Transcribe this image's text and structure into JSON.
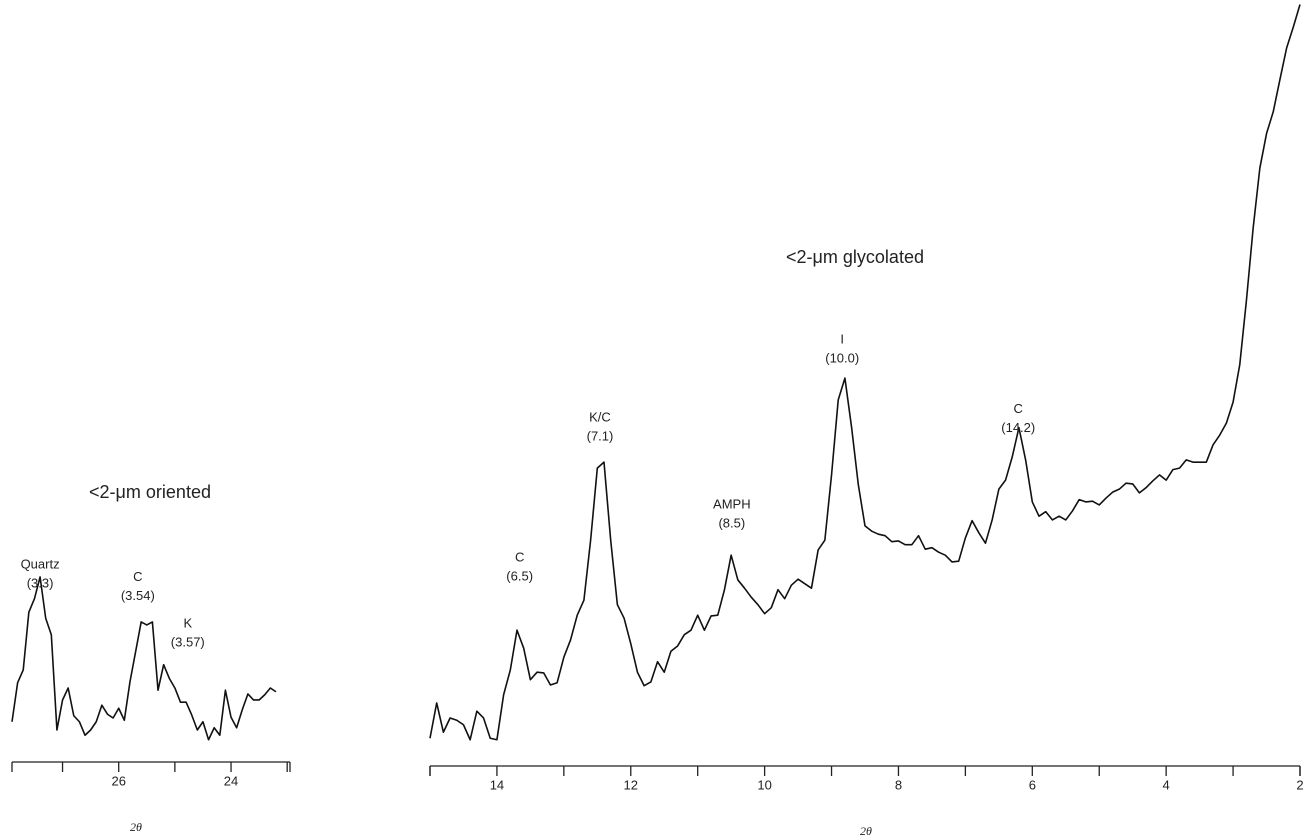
{
  "chart_data": [
    {
      "type": "line",
      "title": "<2-μm oriented",
      "xlabel": "2θ",
      "color": "#111111",
      "xlim": [
        27.9,
        22.95
      ],
      "ylim": [
        0,
        101.3
      ],
      "xticks": [
        26,
        24
      ],
      "xminor_ticks": [
        27,
        25,
        23
      ],
      "x": [
        27.9,
        27.8,
        27.7,
        27.6,
        27.5,
        27.4,
        27.3,
        27.2,
        27.1,
        27.0,
        26.9,
        26.8,
        26.7,
        26.6,
        26.5,
        26.4,
        26.3,
        26.2,
        26.1,
        26.0,
        25.9,
        25.8,
        25.7,
        25.6,
        25.5,
        25.4,
        25.3,
        25.2,
        25.1,
        25.0,
        24.9,
        24.8,
        24.7,
        24.6,
        24.5,
        24.4,
        24.3,
        24.2,
        24.1,
        24.0,
        23.9,
        23.8,
        23.7,
        23.6,
        23.5,
        23.4,
        23.3,
        23.2
      ],
      "values": [
        5.1,
        10.3,
        12,
        19.7,
        21.5,
        24.4,
        18.9,
        16.7,
        4,
        8,
        9.6,
        5.9,
        5.1,
        3.3,
        4,
        5.1,
        7.3,
        6.1,
        5.6,
        6.9,
        5.3,
        10.4,
        14.4,
        18.4,
        18,
        18.4,
        9.3,
        12.7,
        10.9,
        9.6,
        7.7,
        7.7,
        6,
        4,
        5.1,
        2.7,
        4.3,
        3.3,
        9.3,
        5.7,
        4.3,
        6.7,
        8.8,
        8,
        8,
        8.7,
        9.6,
        9.1
      ],
      "annotations": [
        {
          "label": "Quartz",
          "sublabel": "(3.3)",
          "x": 27.4,
          "y": 26
        },
        {
          "label": "C",
          "sublabel": "(3.54)",
          "x": 25.66,
          "y": 24.3
        },
        {
          "label": "K",
          "sublabel": "(3.57)",
          "x": 24.77,
          "y": 18.1
        }
      ]
    },
    {
      "type": "line",
      "title": "<2-μm glycolated",
      "xlabel": "2θ",
      "color": "#111111",
      "xlim": [
        15,
        2
      ],
      "ylim": [
        0,
        101.3
      ],
      "xticks": [
        14,
        12,
        10,
        8,
        6,
        4,
        2
      ],
      "xminor_ticks": [
        15,
        13,
        11,
        9,
        7,
        5,
        3
      ],
      "x": [
        15.0,
        14.9,
        14.8,
        14.7,
        14.6,
        14.5,
        14.4,
        14.3,
        14.2,
        14.1,
        14.0,
        13.9,
        13.8,
        13.7,
        13.6,
        13.5,
        13.4,
        13.3,
        13.2,
        13.1,
        13.0,
        12.9,
        12.8,
        12.7,
        12.6,
        12.5,
        12.4,
        12.3,
        12.2,
        12.1,
        12.0,
        11.9,
        11.8,
        11.7,
        11.6,
        11.5,
        11.4,
        11.3,
        11.2,
        11.1,
        11.0,
        10.9,
        10.8,
        10.7,
        10.6,
        10.5,
        10.4,
        10.3,
        10.2,
        10.1,
        10.0,
        9.9,
        9.8,
        9.7,
        9.6,
        9.5,
        9.4,
        9.3,
        9.2,
        9.1,
        9.0,
        8.9,
        8.8,
        8.7,
        8.6,
        8.5,
        8.4,
        8.3,
        8.2,
        8.1,
        8.0,
        7.9,
        7.8,
        7.7,
        7.6,
        7.5,
        7.4,
        7.3,
        7.2,
        7.1,
        7.0,
        6.9,
        6.8,
        6.7,
        6.6,
        6.5,
        6.4,
        6.3,
        6.2,
        6.1,
        6.0,
        5.9,
        5.8,
        5.7,
        5.6,
        5.5,
        5.4,
        5.3,
        5.2,
        5.1,
        5.0,
        4.9,
        4.8,
        4.7,
        4.6,
        4.5,
        4.4,
        4.3,
        4.2,
        4.1,
        4.0,
        3.9,
        3.8,
        3.7,
        3.6,
        3.5,
        3.4,
        3.3,
        3.2,
        3.1,
        3.0,
        2.9,
        2.8,
        2.7,
        2.6,
        2.5,
        2.4,
        2.3,
        2.2,
        2.1,
        2.0
      ],
      "values": [
        2.9,
        7.6,
        3.7,
        5.6,
        5.3,
        4.7,
        2.7,
        6.5,
        5.6,
        2.9,
        2.7,
        8.7,
        12,
        17.3,
        14.9,
        10.7,
        11.7,
        11.6,
        10,
        10.3,
        13.7,
        16,
        19.3,
        21.3,
        29.3,
        38.9,
        39.7,
        29.3,
        20.7,
        18.9,
        15.5,
        11.7,
        9.9,
        10.4,
        13.1,
        11.7,
        14.5,
        15.2,
        16.7,
        17.3,
        19.3,
        17.3,
        19.2,
        19.3,
        22.7,
        27.3,
        24,
        22.9,
        21.7,
        20.7,
        19.5,
        20.3,
        22.7,
        21.5,
        23.3,
        24.1,
        23.5,
        22.9,
        28,
        29.3,
        38,
        48,
        50.9,
        44.3,
        36.7,
        31.2,
        30.5,
        30.1,
        29.9,
        29.1,
        29.2,
        28.7,
        28.7,
        29.9,
        28.1,
        28.3,
        27.7,
        27.3,
        26.4,
        26.5,
        29.6,
        31.9,
        30.3,
        28.9,
        32,
        36.1,
        37.3,
        40.4,
        44.3,
        40,
        34.4,
        32.5,
        33.1,
        32,
        32.5,
        32,
        33.2,
        34.7,
        34.4,
        34.5,
        34,
        34.9,
        35.7,
        36.1,
        36.9,
        36.8,
        35.6,
        36.3,
        37.2,
        38,
        37.3,
        38.7,
        38.9,
        40,
        39.7,
        39.7,
        39.7,
        42,
        43.3,
        44.9,
        47.7,
        52.7,
        61.3,
        70.9,
        78.9,
        83.5,
        86.4,
        90.7,
        94.9,
        97.7,
        100.7
      ],
      "annotations": [
        {
          "label": "C",
          "sublabel": "(6.5)",
          "x": 13.66,
          "y": 26.9
        },
        {
          "label": "K/C",
          "sublabel": "(7.1)",
          "x": 12.46,
          "y": 45.6
        },
        {
          "label": "AMPH",
          "sublabel": "(8.5)",
          "x": 10.49,
          "y": 34
        },
        {
          "label": "I",
          "sublabel": "(10.0)",
          "x": 8.84,
          "y": 56
        },
        {
          "label": "C",
          "sublabel": "(14.2)",
          "x": 6.21,
          "y": 46.7
        }
      ]
    }
  ]
}
